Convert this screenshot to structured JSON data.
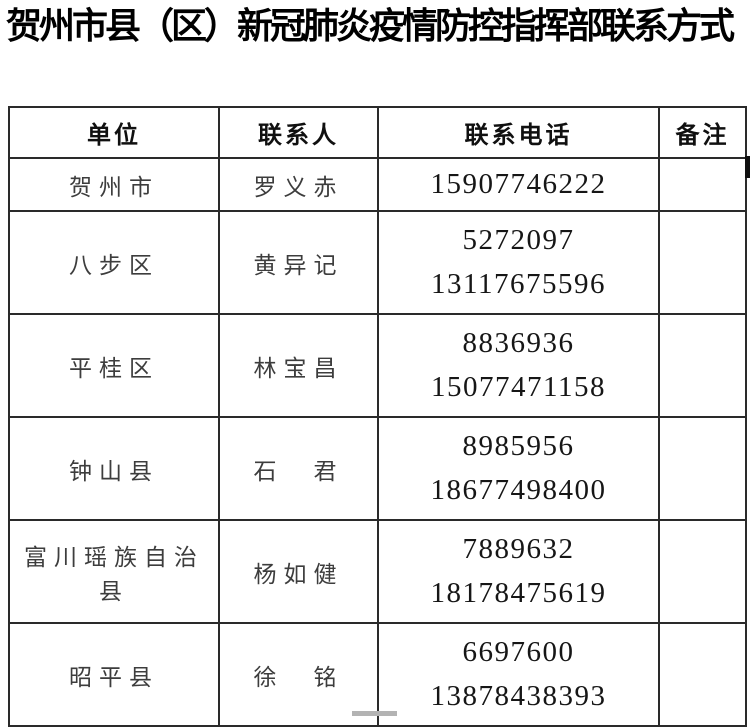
{
  "title": "贺州市县（区）新冠肺炎疫情防控指挥部联系方式",
  "table": {
    "headers": [
      "单位",
      "联系人",
      "联系电话",
      "备注"
    ],
    "rows": [
      {
        "unit": "贺州市",
        "contact": "罗义赤",
        "phones": [
          "15907746222"
        ],
        "note": ""
      },
      {
        "unit": "八步区",
        "contact": "黄异记",
        "phones": [
          "5272097",
          "13117675596"
        ],
        "note": ""
      },
      {
        "unit": "平桂区",
        "contact": "林宝昌",
        "phones": [
          "8836936",
          "15077471158"
        ],
        "note": ""
      },
      {
        "unit": "钟山县",
        "contact": "石　君",
        "phones": [
          "8985956",
          "18677498400"
        ],
        "note": ""
      },
      {
        "unit": "富川瑶族自治县",
        "contact": "杨如健",
        "phones": [
          "7889632",
          "18178475619"
        ],
        "note": ""
      },
      {
        "unit": "昭平县",
        "contact": "徐　铭",
        "phones": [
          "6697600",
          "13878438393"
        ],
        "note": ""
      }
    ]
  }
}
